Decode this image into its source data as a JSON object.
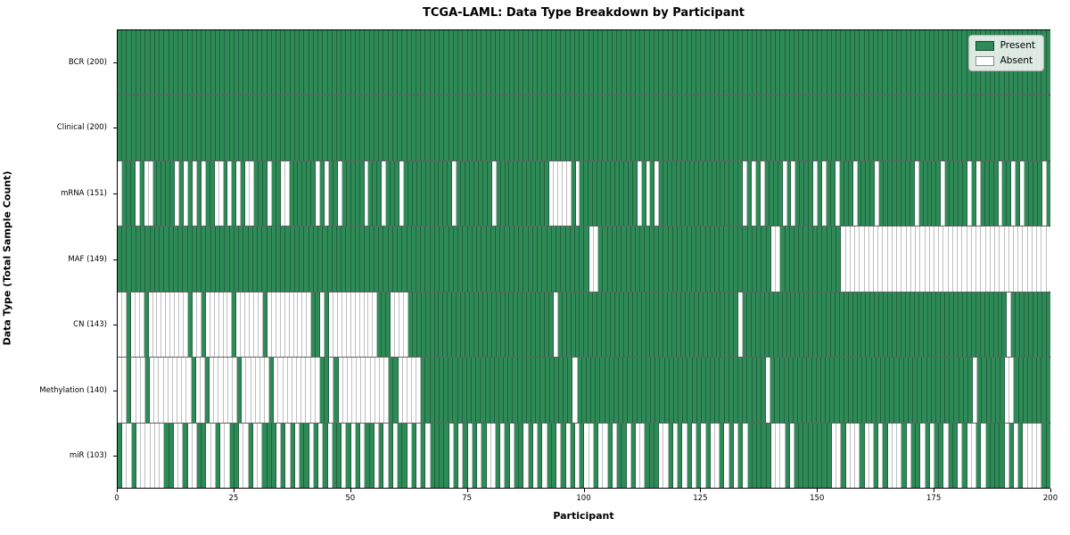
{
  "title": "TCGA-LAML: Data Type Breakdown by Participant",
  "colors": {
    "present": "#2e8b57",
    "absent": "#ffffff",
    "grid_line": "#000000"
  },
  "chart_data": {
    "type": "heatmap",
    "title": "TCGA-LAML: Data Type Breakdown by Participant",
    "xlabel": "Participant",
    "ylabel": "Data Type (Total Sample Count)",
    "x_range": [
      0,
      200
    ],
    "x_ticks": [
      0,
      25,
      50,
      75,
      100,
      125,
      150,
      175,
      200
    ],
    "grid": false,
    "legend_position": "upper right",
    "legend_items": [
      {
        "label": "Present",
        "color": "#2e8b57"
      },
      {
        "label": "Absent",
        "color": "#ffffff"
      }
    ],
    "cell_values": {
      "present_char": "1",
      "absent_char": "0"
    },
    "rows": [
      {
        "label": "BCR (200)",
        "present_count": 200,
        "pattern": "11111111111111111111111111111111111111111111111111111111111111111111111111111111111111111111111111111111111111111111111111111111111111111111111111111111111111111111111111111111111111111111111111111111"
      },
      {
        "label": "Clinical (200)",
        "present_count": 200,
        "pattern": "11111111111111111111111111111111111111111111111111111111111111111111111111111111111111111111111111111111111111111111111111111111111111111111111111111111111111111111111111111111111111111111111111111111"
      },
      {
        "label": "mRNA (151)",
        "present_count": 151,
        "pattern": "01110100111110101010110010101001110110011111101011011111011101110111111111110111111110111111111111000001011111111111110101011111111111111111110101011110101111010110111011110111111110111110111110101111011010111101"
      },
      {
        "label": "MAF (149)",
        "present_count": 149,
        "pattern": "11111111111111111111111111111111111111111111111111111111111111111111111111111111111111111111111111111001111111111111111111111111111111111111001111111111111000000000000000000000000000000000000000000000"
      },
      {
        "label": "CN (143)",
        "present_count": 143,
        "pattern": "00100010000000001001000000100000010000000000110100000000000111000011111111111111111111111111111111101111111111111111111111111111111111111111101111111111111111111111111111111111111111111111111111111111110111111111"
      },
      {
        "label": "Methylation (140)",
        "present_count": 140,
        "pattern": "00100010000000001001000000100000010000000000110100000000000110000011111111111111111111111111111111101111111111111111111111111111111111111111101111111111111111111111111111111111111111111101111110011111111"
      },
      {
        "label": "miR (103)",
        "present_count": 103,
        "pattern": "10010000001100100110010011001001110101011010101101010110101011010101111010101010010101101010110101010010010110100111001010101010010101011111000101111111100100010010100010110101101101001011110101000011"
      }
    ]
  }
}
